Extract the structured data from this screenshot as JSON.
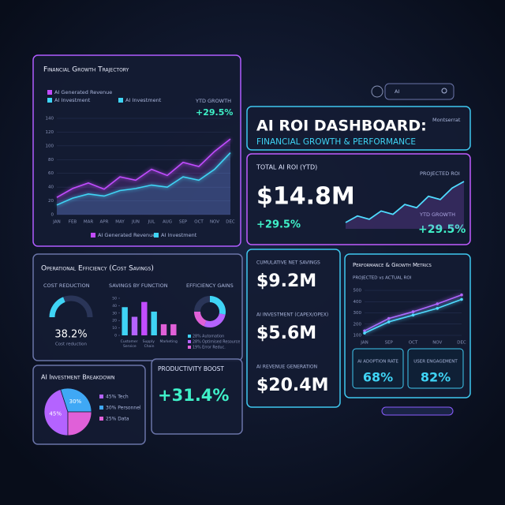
{
  "header": {
    "title": "AI ROI DASHBOARD:",
    "subtitle": "FINANCIAL GROWTH & PERFORMANCE",
    "font_label": "Montserrat",
    "search": "AI"
  },
  "growth": {
    "type": "line",
    "title": "Financial Growth Trajectory",
    "legend_top": [
      "AI Generated Revenue",
      "AI Investment",
      "AI Investment"
    ],
    "ytd_label": "YTD GROWTH",
    "ytd_value": "+29.5%",
    "categories": [
      "JAN",
      "FEB",
      "MAR",
      "APR",
      "MAY",
      "JUN",
      "JUL",
      "AUG",
      "SEP",
      "OCT",
      "NOV",
      "DEC"
    ],
    "series": [
      {
        "name": "AI Generated Revenue",
        "color": "#c24cff",
        "values": [
          25,
          38,
          46,
          37,
          55,
          50,
          66,
          57,
          76,
          70,
          92,
          110
        ]
      },
      {
        "name": "AI Investment",
        "color": "#3fd4f5",
        "values": [
          14,
          24,
          30,
          27,
          35,
          38,
          43,
          40,
          55,
          50,
          66,
          90
        ]
      }
    ],
    "ylim": [
      0,
      140
    ],
    "yticks": [
      0,
      20,
      40,
      60,
      80,
      100,
      120,
      140
    ]
  },
  "roi": {
    "title": "TOTAL AI ROI (YTD)",
    "value": "$14.8M",
    "change": "+29.5%",
    "projected_label": "PROJECTED ROI",
    "growth_label": "YTD GROWTH",
    "growth_value": "+29.5%",
    "trend": [
      10,
      14,
      12,
      17,
      15,
      21,
      19,
      26,
      24,
      31,
      35
    ]
  },
  "kpis": [
    {
      "label": "CUMULATIVE NET SAVINGS",
      "value": "$9.2M"
    },
    {
      "label": "AI INVESTMENT (CAPEX/OPEX)",
      "value": "$5.6M"
    },
    {
      "label": "AI REVENUE GENERATION",
      "value": "$20.4M"
    }
  ],
  "perf": {
    "type": "line",
    "title": "Performance & Growth Metrics",
    "subtitle": "PROJECTED vs ACTUAL ROI",
    "categories": [
      "JAN",
      "SEP",
      "OCT",
      "NOV",
      "DEC"
    ],
    "series": [
      {
        "color": "#b463ff",
        "values": [
          140,
          250,
          310,
          380,
          460
        ]
      },
      {
        "color": "#4fdcff",
        "values": [
          120,
          220,
          280,
          340,
          420
        ]
      }
    ],
    "ylim": [
      100,
      500
    ],
    "yticks": [
      100,
      200,
      300,
      400,
      500
    ],
    "metrics": [
      {
        "label": "AI ADOPTION RATE",
        "value": "68%"
      },
      {
        "label": "USER ENGAGEMENT",
        "value": "82%"
      }
    ]
  },
  "ops": {
    "title": "Operational Efficiency (Cost Savings)",
    "gauge": {
      "title": "COST REDUCTION",
      "value": 38.2,
      "label": "38.2%",
      "caption": "Cost reduction"
    },
    "bars": {
      "type": "bar",
      "title": "SAVINGS BY FUNCTION",
      "categories": [
        "Customer Service",
        null,
        "Supply Chain",
        null,
        "Marketing",
        null
      ],
      "values": [
        38,
        25,
        45,
        32,
        15,
        15
      ],
      "colors": [
        "#3fd4f5",
        "#b463ff",
        "#c24cff",
        "#3fd4f5",
        "#e060d8",
        "#e060d8"
      ],
      "ylim": [
        0,
        50
      ],
      "yticks": [
        0,
        10,
        20,
        30,
        40,
        50
      ]
    },
    "donut": {
      "type": "pie",
      "title": "EFFICIENCY GAINS",
      "labels": [
        "28% Automation",
        "28% Optimised Resource",
        "19% Error Reduc."
      ],
      "values": [
        28,
        28,
        19
      ],
      "colors": [
        "#3fd4f5",
        "#b463ff",
        "#e060d8"
      ]
    }
  },
  "invest": {
    "type": "pie",
    "title": "AI Investment Breakdown",
    "values": [
      45,
      30,
      25
    ],
    "value_labels": [
      "45%",
      "30%",
      null
    ],
    "legend": [
      "45% Tech",
      "30% Personnel",
      "25% Data"
    ],
    "colors": [
      "#b463ff",
      "#3fa8f5",
      "#e060d8"
    ]
  },
  "productivity": {
    "title": "PRODUCTIVITY BOOST",
    "value": "+31.4%"
  }
}
